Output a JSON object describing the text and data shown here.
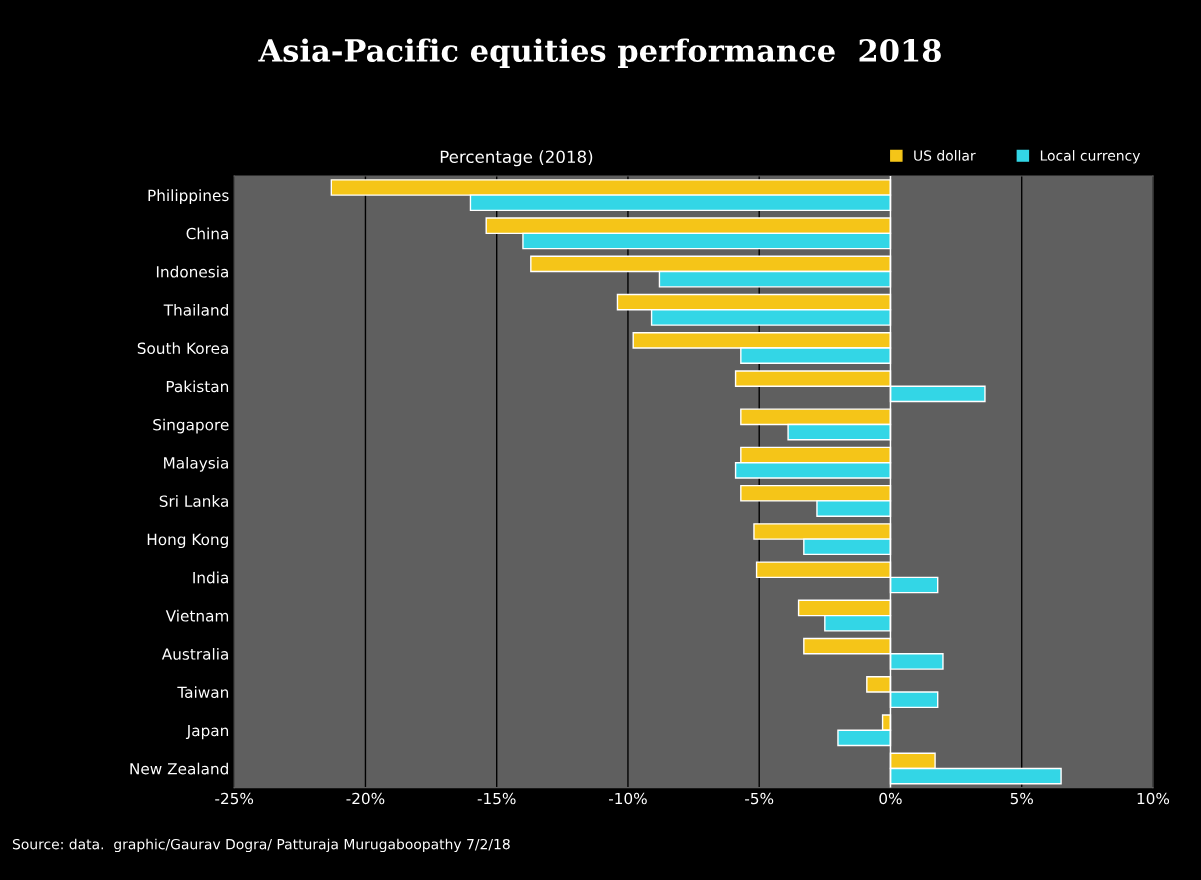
{
  "chart_data": {
    "type": "bar",
    "orientation": "horizontal",
    "title": "Asia-Pacific equities performance  2018",
    "subtitle": "Percentage (2018)",
    "categories": [
      "Philippines",
      "China",
      "Indonesia",
      "Thailand",
      "South Korea",
      "Pakistan",
      "Singapore",
      "Malaysia",
      "Sri Lanka",
      "Hong Kong",
      "India",
      "Vietnam",
      "Australia",
      "Taiwan",
      "Japan",
      "New Zealand"
    ],
    "series": [
      {
        "name": "US dollar",
        "color": "#f5c518",
        "values": [
          -21.3,
          -15.4,
          -13.7,
          -10.4,
          -9.8,
          -5.9,
          -5.7,
          -5.7,
          -5.7,
          -5.2,
          -5.1,
          -3.5,
          -3.3,
          -0.9,
          -0.3,
          1.7
        ]
      },
      {
        "name": "Local currency",
        "color": "#33d6e6",
        "values": [
          -16.0,
          -14.0,
          -8.8,
          -9.1,
          -5.7,
          3.6,
          -3.9,
          -5.9,
          -2.8,
          -3.3,
          1.8,
          -2.5,
          2.0,
          1.8,
          -2.0,
          6.5
        ]
      }
    ],
    "xlim": [
      -25,
      10
    ],
    "xticks": [
      {
        "value": -25,
        "label": "-25%"
      },
      {
        "value": -20,
        "label": "-20%"
      },
      {
        "value": -15,
        "label": "-15%"
      },
      {
        "value": -10,
        "label": "-10%"
      },
      {
        "value": -5,
        "label": "-5%"
      },
      {
        "value": 0,
        "label": "0%"
      },
      {
        "value": 5,
        "label": "5%"
      },
      {
        "value": 10,
        "label": "10%"
      }
    ],
    "grid": "x",
    "legend": "top right",
    "annotations": [
      "Source: data.  graphic/Gaurav Dogra/ Patturaja Murugaboopathy 7/2/18"
    ]
  }
}
